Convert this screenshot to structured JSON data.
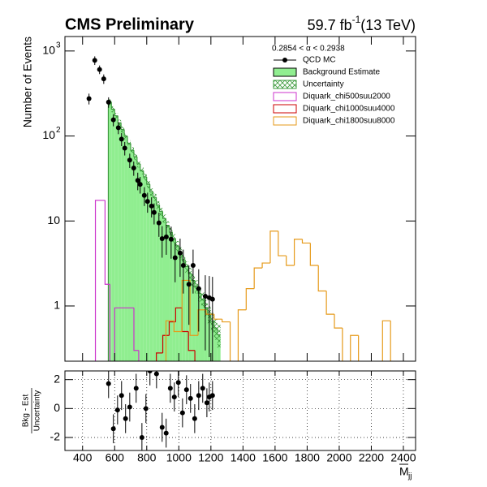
{
  "chart_data": {
    "type": "histogram",
    "title": "CMS Preliminary",
    "lumi": "59.7 fb",
    "lumi_exp": "-1",
    "energy": "(13 TeV)",
    "legend_title": "0.2854 <  α < 0.2938",
    "legend": "upper right",
    "y_label": "Number of Events",
    "x_label": "M",
    "x_label_sub": "jj",
    "log_y": true,
    "xlim": [
      290,
      2476
    ],
    "xticks": [
      400,
      600,
      800,
      1000,
      1200,
      1400,
      1600,
      1800,
      2000,
      2200,
      2400
    ],
    "ylim": [
      0.224,
      1480
    ],
    "yticks": [
      1,
      10,
      {
        "value": 100,
        "label": "10",
        "exponent": "2"
      },
      {
        "value": 1000,
        "label": "10",
        "exponent": "3"
      }
    ],
    "points": {
      "name": "QCD MC",
      "color": "#000000",
      "x": [
        440,
        476,
        506,
        532,
        562,
        592,
        623,
        643,
        663,
        694,
        719,
        744,
        759,
        785,
        805,
        830,
        846,
        876,
        896,
        922,
        952,
        977,
        1008,
        1028,
        1063,
        1089,
        1124,
        1165,
        1190,
        1210
      ],
      "values": [
        275,
        775,
        605,
        470,
        250,
        155,
        125,
        92,
        72,
        52,
        42,
        30,
        27,
        20,
        17,
        15,
        12.6,
        9.5,
        6.2,
        6.5,
        6.1,
        3.7,
        4.2,
        3.0,
        1.8,
        3.0,
        1.6,
        1.3,
        1.25,
        1.2
      ],
      "errors": [
        40,
        90,
        70,
        60,
        35,
        25,
        20,
        16,
        13,
        10,
        8,
        7,
        6,
        5,
        4.5,
        4,
        3.5,
        3,
        2.5,
        2.5,
        2.5,
        1.8,
        2,
        1.6,
        1.2,
        1.6,
        1.1,
        1,
        1,
        1
      ]
    },
    "background": {
      "name": "Background Estimate",
      "color": "#90ee90",
      "bins": [
        560,
        580,
        600,
        620,
        640,
        660,
        680,
        700,
        720,
        740,
        760,
        780,
        800,
        820,
        840,
        860,
        880,
        900,
        920,
        940,
        960,
        980,
        1000,
        1020,
        1040,
        1060,
        1080,
        1100,
        1120,
        1140,
        1160,
        1180,
        1200,
        1220,
        1240,
        1260
      ],
      "values": [
        250,
        207,
        173,
        143,
        119,
        99,
        82,
        68,
        57,
        47,
        39,
        33,
        27,
        22,
        19,
        15.5,
        12.9,
        10.7,
        8.9,
        7.4,
        6.2,
        5.1,
        4.3,
        3.5,
        2.9,
        2.4,
        2.0,
        1.7,
        1.4,
        1.2,
        0.96,
        0.8,
        0.66,
        0.55,
        0.46
      ]
    },
    "uncertainty": {
      "name": "Uncertainty",
      "color": "#3c9a3c",
      "errors": [
        20,
        17,
        14,
        12,
        10,
        8.5,
        7,
        6,
        5,
        4.3,
        3.6,
        3.1,
        2.6,
        2.2,
        1.9,
        1.6,
        1.4,
        1.2,
        1.0,
        0.9,
        0.8,
        0.7,
        0.6,
        0.5,
        0.45,
        0.4,
        0.35,
        0.3,
        0.27,
        0.24,
        0.21,
        0.19,
        0.17,
        0.15,
        0.14
      ]
    },
    "signals": [
      {
        "name": "Diquark_chi500suu2000",
        "color": "#cc33cc",
        "bins": [
          480,
          540,
          570,
          600,
          720,
          750
        ],
        "values": [
          17.5,
          1.8,
          0.1,
          0.95,
          0.3
        ]
      },
      {
        "name": "Diquark_chi1000suu4000",
        "color": "#cc0000",
        "bins": [
          860,
          900,
          940,
          980,
          1020,
          1060,
          1100
        ],
        "values": [
          0.28,
          0.45,
          0.65,
          0.95,
          0.5,
          0.3
        ]
      },
      {
        "name": "Diquark_chi1800suu8000",
        "color": "#e69a1a",
        "bins": [
          920,
          970,
          1020,
          1070,
          1120,
          1170,
          1220,
          1270,
          1320,
          1370,
          1420,
          1470,
          1520,
          1570,
          1620,
          1670,
          1720,
          1770,
          1820,
          1870,
          1920,
          1970,
          2020,
          2070,
          2120,
          2170,
          2220,
          2270,
          2320
        ],
        "values": [
          0.67,
          0.5,
          2.0,
          0.45,
          0.9,
          0.8,
          0.7,
          0.65,
          0.1,
          0.9,
          1.6,
          2.8,
          3.2,
          7.6,
          3.9,
          3.0,
          6.1,
          5.5,
          3.0,
          1.5,
          0.8,
          0.55,
          0.1,
          0.45,
          0.1,
          0.1,
          0.1,
          0.67
        ]
      }
    ],
    "ratio": {
      "y_label": "Bkg - Est",
      "y_label_den": "Uncertainty",
      "grid": true,
      "ylim": [
        -2.9,
        2.6
      ],
      "yticks": [
        -2,
        0,
        2
      ],
      "x": [
        562,
        592,
        618,
        643,
        668,
        694,
        734,
        770,
        795,
        820,
        861,
        896,
        921,
        947,
        972,
        997,
        1023,
        1048,
        1073,
        1099,
        1124,
        1149,
        1175,
        1190,
        1210
      ],
      "values": [
        1.72,
        -1.4,
        -0.1,
        0.9,
        -0.7,
        0.1,
        1.4,
        -2.0,
        0.0,
        2.6,
        2.4,
        -1.3,
        -1.7,
        1.4,
        0.8,
        1.8,
        -0.3,
        1.3,
        0.7,
        -0.7,
        0.9,
        1.4,
        0.4,
        0.8,
        0.9
      ],
      "errors": [
        1,
        1,
        1,
        1,
        1,
        1,
        1,
        1,
        1,
        1,
        1,
        1,
        1,
        1,
        1,
        1,
        1,
        1,
        1,
        1,
        1,
        1,
        1,
        1,
        1
      ]
    }
  }
}
